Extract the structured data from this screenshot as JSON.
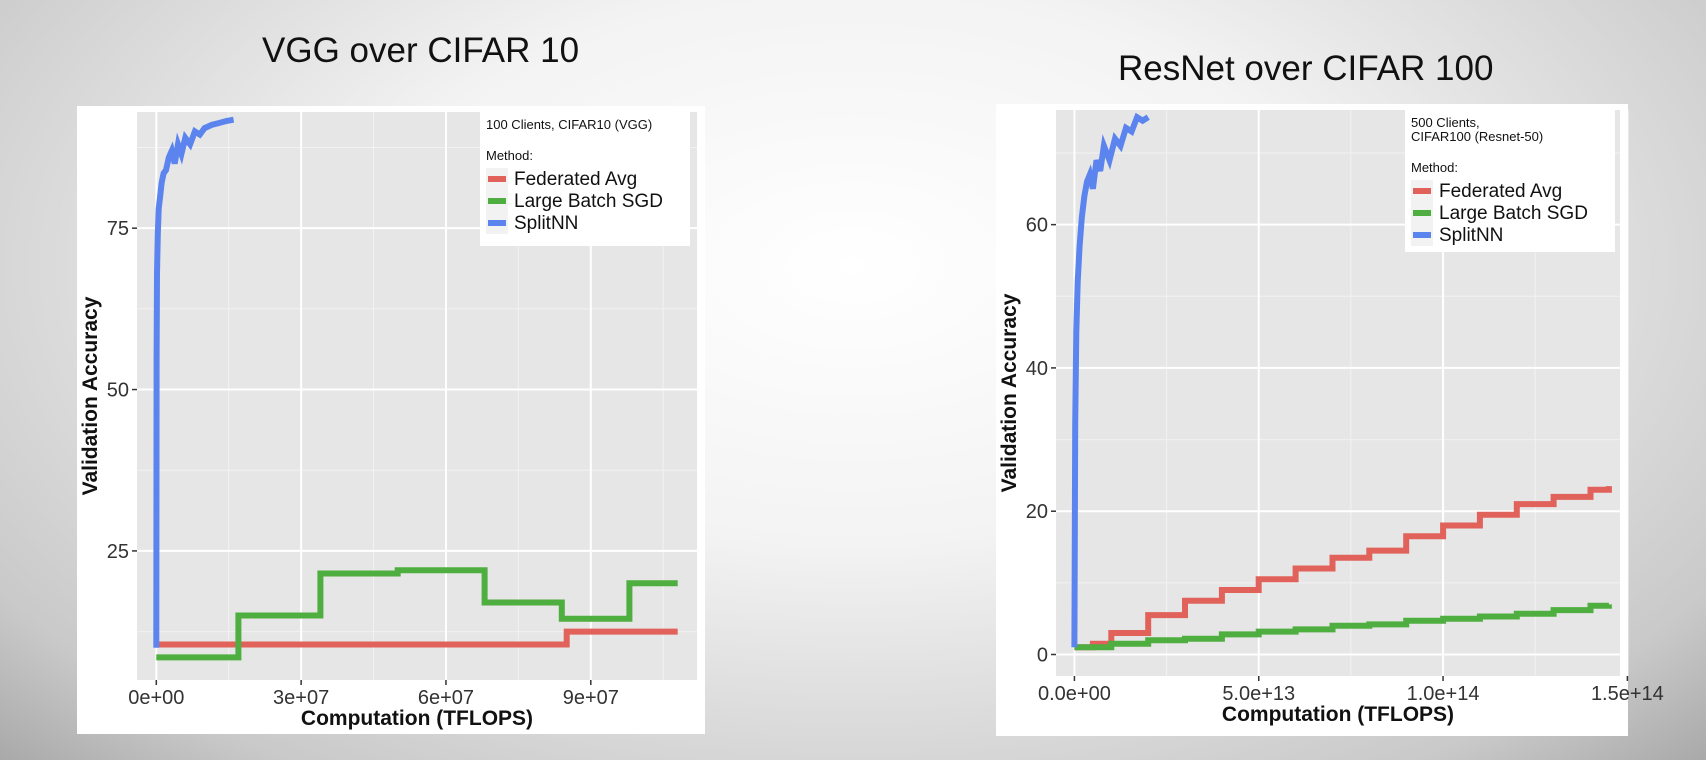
{
  "slide": {
    "left_title": "VGG over CIFAR 10",
    "right_title": "ResNet over CIFAR 100"
  },
  "colors": {
    "federated_avg": "#E0625A",
    "large_batch_sgd": "#4EAE3F",
    "splitnn": "#5B84EE",
    "panel": "#E6E6E6",
    "grid": "#FFFFFF"
  },
  "chart_data": [
    {
      "type": "line",
      "title": "",
      "xlabel": "Computation (TFLOPS)",
      "ylabel": "Validation Accuracy",
      "xlim": [
        -4000000,
        112000000
      ],
      "ylim": [
        5,
        93
      ],
      "x_ticks": [
        0,
        30000000,
        60000000,
        90000000
      ],
      "x_tick_labels": [
        "0e+00",
        "3e+07",
        "6e+07",
        "9e+07"
      ],
      "y_ticks": [
        25,
        50,
        75
      ],
      "y_tick_labels": [
        "25",
        "50",
        "75"
      ],
      "grid": true,
      "legend": {
        "position": "top-right",
        "title_line1": "100 Clients, CIFAR10 (VGG)",
        "title_line2": "",
        "heading": "Method:",
        "entries": [
          "Federated Avg",
          "Large Batch SGD",
          "SplitNN"
        ]
      },
      "series": [
        {
          "name": "Federated Avg",
          "step": true,
          "x": [
            0,
            84000000,
            85000000,
            108000000
          ],
          "y": [
            10.5,
            10.5,
            12.5,
            12.5
          ]
        },
        {
          "name": "Large Batch SGD",
          "step": true,
          "x": [
            0,
            17000000,
            34000000,
            50000000,
            68000000,
            84000000,
            98000000,
            108000000
          ],
          "y": [
            8.5,
            15,
            21.5,
            22,
            17,
            14.5,
            20,
            20
          ]
        },
        {
          "name": "SplitNN",
          "step": false,
          "x": [
            0,
            60000,
            150000,
            300000,
            500000,
            800000,
            1100000,
            1500000,
            2000000,
            2600000,
            3200000,
            3800000,
            4500000,
            5200000,
            6000000,
            7000000,
            8000000,
            9000000,
            10000000,
            11500000,
            13000000,
            14500000,
            16000000
          ],
          "y": [
            10,
            55,
            68,
            74,
            78,
            80,
            82,
            83.5,
            84,
            86,
            87,
            85,
            88,
            86.5,
            89,
            88,
            90,
            89.5,
            90.5,
            91,
            91.3,
            91.6,
            91.8
          ]
        }
      ]
    },
    {
      "type": "line",
      "title": "",
      "xlabel": "Computation (TFLOPS)",
      "ylabel": "Validation Accuracy",
      "xlim": [
        -5000000000000,
        148000000000000
      ],
      "ylim": [
        -3,
        76
      ],
      "x_ticks": [
        0,
        50000000000000,
        100000000000000,
        150000000000000
      ],
      "x_tick_labels": [
        "0.0e+00",
        "5.0e+13",
        "1.0e+14",
        "1.5e+14"
      ],
      "y_ticks": [
        0,
        20,
        40,
        60
      ],
      "y_tick_labels": [
        "0",
        "20",
        "40",
        "60"
      ],
      "grid": true,
      "legend": {
        "position": "top-right",
        "title_line1": "500 Clients,",
        "title_line2": "CIFAR100 (Resnet-50)",
        "heading": "Method:",
        "entries": [
          "Federated Avg",
          "Large Batch SGD",
          "SplitNN"
        ]
      },
      "series": [
        {
          "name": "Federated Avg",
          "step": true,
          "x": [
            0,
            5000000000000,
            10000000000000,
            20000000000000,
            30000000000000,
            40000000000000,
            50000000000000,
            60000000000000,
            70000000000000,
            80000000000000,
            90000000000000,
            100000000000000,
            110000000000000,
            120000000000000,
            130000000000000,
            140000000000000,
            145000000000000
          ],
          "y": [
            1,
            1.5,
            3,
            5.5,
            7.5,
            9,
            10.5,
            12,
            13.5,
            14.5,
            16.5,
            18,
            19.5,
            21,
            22,
            23,
            23.5
          ]
        },
        {
          "name": "Large Batch SGD",
          "step": true,
          "x": [
            0,
            10000000000000,
            20000000000000,
            30000000000000,
            40000000000000,
            50000000000000,
            60000000000000,
            70000000000000,
            80000000000000,
            90000000000000,
            100000000000000,
            110000000000000,
            120000000000000,
            130000000000000,
            140000000000000,
            145000000000000
          ],
          "y": [
            1,
            1.5,
            2,
            2.2,
            2.8,
            3.2,
            3.5,
            4,
            4.2,
            4.7,
            5,
            5.3,
            5.7,
            6.2,
            6.8,
            7
          ]
        },
        {
          "name": "SplitNN",
          "step": false,
          "x": [
            0,
            200000000000,
            500000000000,
            900000000000,
            1400000000000,
            2000000000000,
            2700000000000,
            3400000000000,
            4200000000000,
            5000000000000,
            6000000000000,
            7000000000000,
            8000000000000,
            9500000000000,
            11000000000000,
            12500000000000,
            14000000000000,
            15500000000000,
            17000000000000,
            18500000000000,
            20000000000000
          ],
          "y": [
            1,
            32,
            45,
            52,
            57,
            61,
            64,
            66,
            67,
            65,
            69,
            67.5,
            71,
            69,
            72,
            71,
            73.5,
            73,
            75,
            74.5,
            75
          ]
        }
      ]
    }
  ]
}
